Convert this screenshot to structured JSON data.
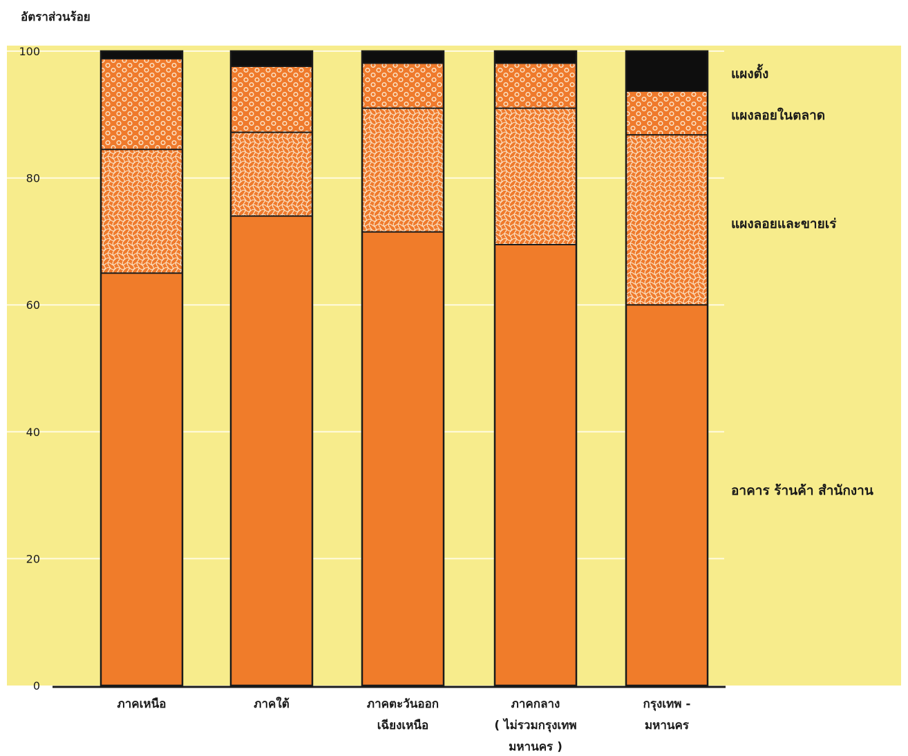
{
  "chart_data": {
    "type": "bar",
    "stacked": true,
    "ylabel": "อัตราส่วนร้อย",
    "ylim": [
      0,
      100
    ],
    "yticks": [
      0,
      20,
      40,
      60,
      80,
      100
    ],
    "grid": true,
    "categories": [
      [
        "ภาคเหนือ"
      ],
      [
        "ภาคใต้"
      ],
      [
        "ภาคตะวันออก",
        "เฉียงเหนือ"
      ],
      [
        "ภาคกลาง",
        "( ไม่รวมกรุงเทพ",
        "มหานคร )"
      ],
      [
        "กรุงเทพ -",
        "มหานคร"
      ]
    ],
    "series": [
      {
        "name": "อาคาร ร้านค้า สำนักงาน",
        "values": [
          65,
          74,
          71.5,
          69.5,
          60
        ]
      },
      {
        "name": "แผงลอยและขายเร่",
        "values": [
          19.5,
          13.2,
          19.5,
          21.5,
          26.8
        ]
      },
      {
        "name": "แผงลอยในตลาด",
        "values": [
          14.3,
          10.4,
          7.1,
          7.1,
          6.9
        ]
      },
      {
        "name": "แผงตั้ง",
        "values": [
          1.2,
          2.4,
          1.9,
          1.9,
          6.3
        ]
      }
    ],
    "legend_placement": "right",
    "colors": {
      "background": "#f7ec8c",
      "base": "#f07c2a",
      "pattern_fill": "#ef7a2c",
      "pattern_line": "#fbe3c6",
      "top": "#0e0e0e",
      "outline": "#1a1a1a"
    }
  }
}
